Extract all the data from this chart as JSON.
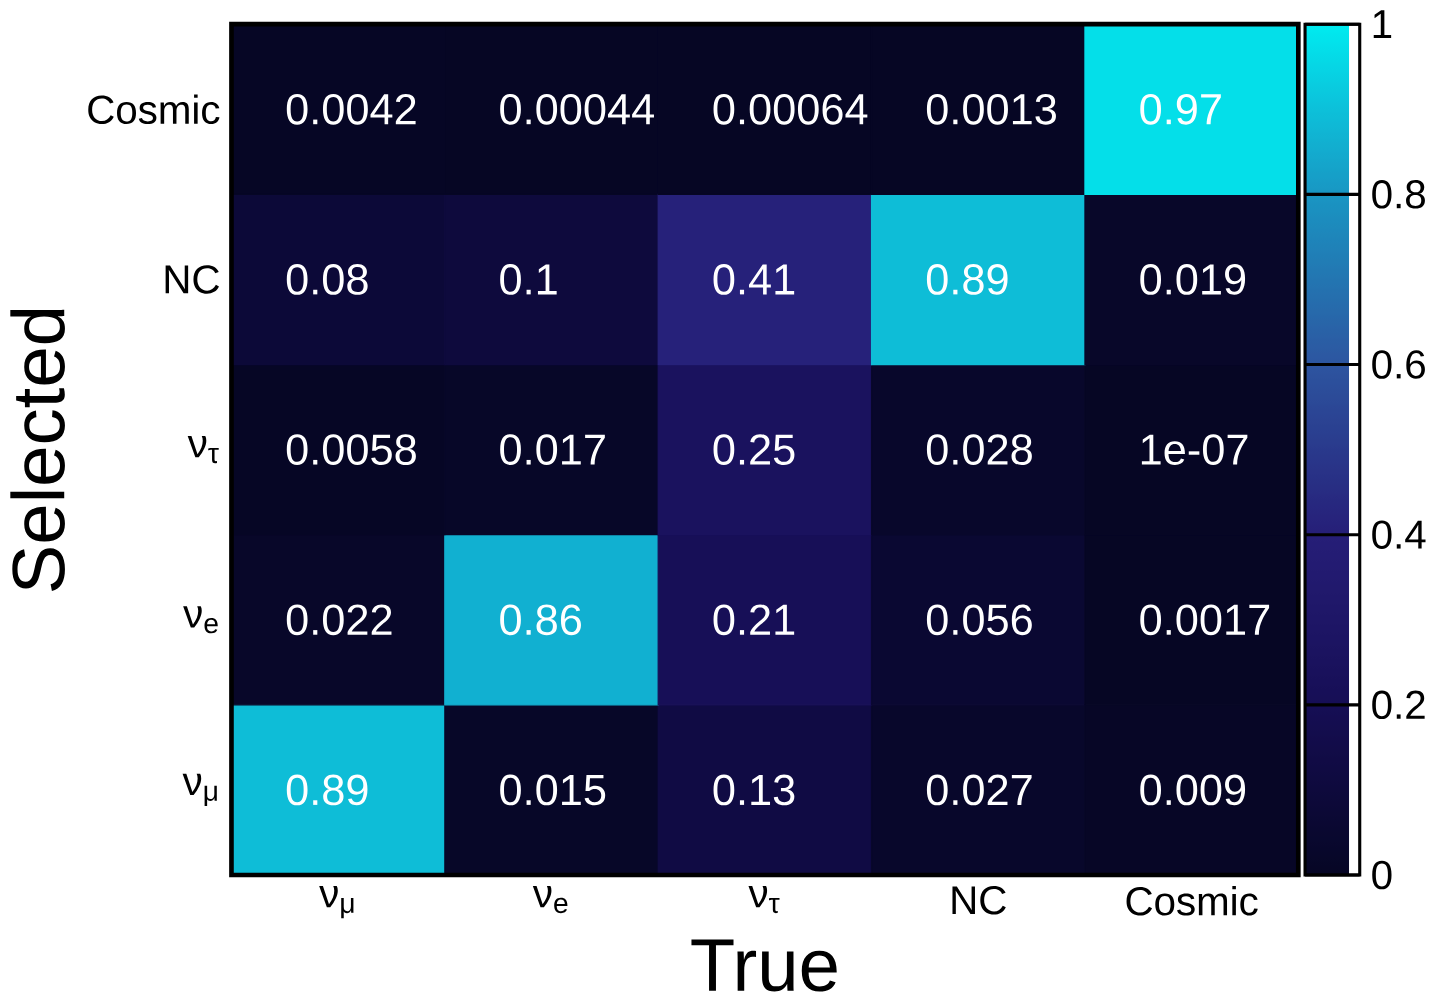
{
  "chart_data": {
    "type": "heatmap",
    "xlabel": "True",
    "ylabel": "Selected",
    "categories": [
      "ν$_{μ}$",
      "ν$_{e}$",
      "ν$_{τ}$",
      "NC",
      "Cosmic"
    ],
    "y_categories": [
      "Cosmic",
      "NC",
      "ν$_{τ}$",
      "ν$_{e}$",
      "ν$_{μ}$"
    ],
    "cells": [
      [
        0.0042,
        0.00044,
        0.00064,
        0.0013,
        0.97
      ],
      [
        0.08,
        0.1,
        0.41,
        0.89,
        0.019
      ],
      [
        0.0058,
        0.017,
        0.25,
        0.028,
        1e-07
      ],
      [
        0.022,
        0.86,
        0.21,
        0.056,
        0.0017
      ],
      [
        0.89,
        0.015,
        0.13,
        0.027,
        0.009
      ]
    ],
    "cell_labels": [
      [
        "0.0042",
        "0.00044",
        "0.00064",
        "0.0013",
        "0.97"
      ],
      [
        "0.08",
        "0.1",
        "0.41",
        "0.89",
        "0.019"
      ],
      [
        "0.0058",
        "0.017",
        "0.25",
        "0.028",
        "1e-07"
      ],
      [
        "0.022",
        "0.86",
        "0.21",
        "0.056",
        "0.0017"
      ],
      [
        "0.89",
        "0.015",
        "0.13",
        "0.027",
        "0.009"
      ]
    ],
    "clim": [
      0,
      1
    ],
    "cticks": [
      0,
      0.2,
      0.4,
      0.6,
      0.8,
      1
    ]
  }
}
